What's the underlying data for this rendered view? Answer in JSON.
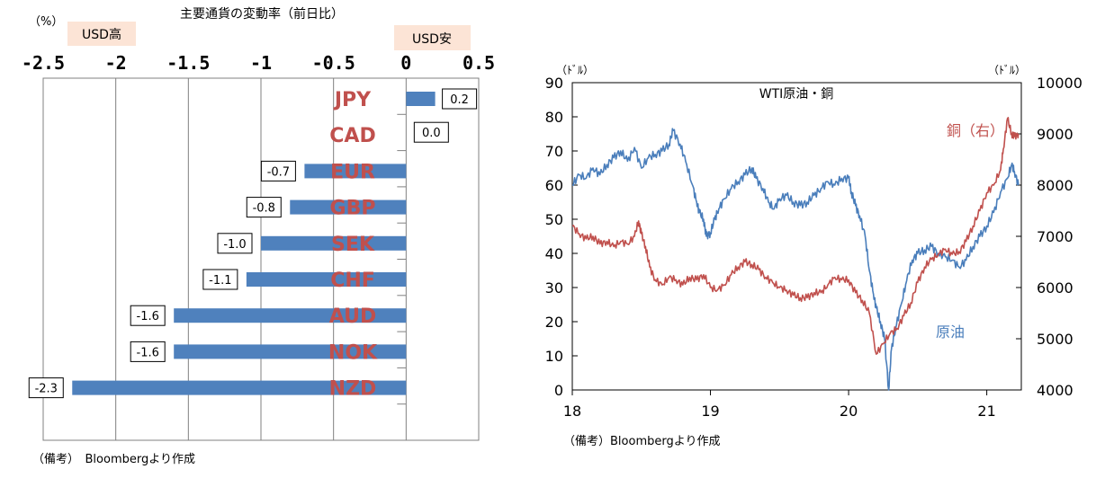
{
  "left_chart": {
    "pct_unit": "（%）",
    "tag_usd_strong": "USD高",
    "tag_usd_weak": "USD安",
    "tag_bg": "#fce4d6",
    "note": "（備考）　Bloombergより作成"
  },
  "right_chart": {
    "left_unit": "（ﾄﾞﾙ）",
    "right_unit": "（ﾄﾞﾙ）",
    "note": "（備考）Bloombergより作成",
    "label_copper": "銅（右）",
    "label_oil": "原油"
  },
  "chart_data": [
    {
      "type": "bar",
      "orientation": "horizontal",
      "title": "主要通貨の変動率（前日比）",
      "categories": [
        "JPY",
        "CAD",
        "EUR",
        "GBP",
        "SEK",
        "CHF",
        "AUD",
        "NOK",
        "NZD"
      ],
      "values": [
        0.2,
        0.0,
        -0.7,
        -0.8,
        -1.0,
        -1.1,
        -1.6,
        -1.6,
        -2.3
      ],
      "data_labels": [
        "0.2",
        "0.0",
        "-0.7",
        "-0.8",
        "-1.0",
        "-1.1",
        "-1.6",
        "-1.6",
        "-2.3"
      ],
      "xticks": [
        -2.5,
        -2,
        -1.5,
        -1,
        -0.5,
        0,
        0.5
      ],
      "xtick_labels": [
        "-2.5",
        "-2",
        "-1.5",
        "-1",
        "-0.5",
        "0",
        "0.5"
      ],
      "xlim": [
        -2.5,
        0.5
      ],
      "grid": true,
      "bar_color": "#4f81bd",
      "category_label_color": "#c0504d"
    },
    {
      "type": "line",
      "title": "WTI原油・銅",
      "xticks": [
        18,
        19,
        20,
        21
      ],
      "xtick_labels": [
        "18",
        "19",
        "20",
        "21"
      ],
      "xlim": [
        18,
        21.25
      ],
      "y_left": {
        "ticks": [
          "0",
          "10",
          "20",
          "30",
          "40",
          "50",
          "60",
          "70",
          "80",
          "90"
        ],
        "ylim": [
          0,
          90
        ]
      },
      "y_right": {
        "ticks": [
          "4000",
          "5000",
          "6000",
          "7000",
          "8000",
          "9000",
          "10000"
        ],
        "ylim": [
          4000,
          10000
        ]
      },
      "series": [
        {
          "name": "原油",
          "axis": "left",
          "color": "#4a7ebb",
          "points": [
            [
              18.0,
              60
            ],
            [
              18.05,
              63
            ],
            [
              18.1,
              62
            ],
            [
              18.15,
              65
            ],
            [
              18.2,
              63
            ],
            [
              18.25,
              66
            ],
            [
              18.3,
              68
            ],
            [
              18.35,
              70
            ],
            [
              18.4,
              67
            ],
            [
              18.45,
              71
            ],
            [
              18.5,
              65
            ],
            [
              18.55,
              68
            ],
            [
              18.6,
              69
            ],
            [
              18.65,
              70
            ],
            [
              18.7,
              72
            ],
            [
              18.73,
              76
            ],
            [
              18.78,
              72
            ],
            [
              18.82,
              67
            ],
            [
              18.87,
              60
            ],
            [
              18.9,
              55
            ],
            [
              18.92,
              52
            ],
            [
              18.95,
              50
            ],
            [
              18.97,
              45
            ],
            [
              19.0,
              46
            ],
            [
              19.03,
              50
            ],
            [
              19.06,
              53
            ],
            [
              19.1,
              56
            ],
            [
              19.15,
              59
            ],
            [
              19.2,
              61
            ],
            [
              19.25,
              63
            ],
            [
              19.3,
              65
            ],
            [
              19.33,
              62
            ],
            [
              19.38,
              59
            ],
            [
              19.42,
              55
            ],
            [
              19.46,
              53
            ],
            [
              19.5,
              56
            ],
            [
              19.55,
              57
            ],
            [
              19.6,
              55
            ],
            [
              19.65,
              54
            ],
            [
              19.7,
              55
            ],
            [
              19.75,
              57
            ],
            [
              19.8,
              59
            ],
            [
              19.85,
              61
            ],
            [
              19.9,
              60
            ],
            [
              19.95,
              62
            ],
            [
              20.0,
              62
            ],
            [
              20.02,
              58
            ],
            [
              20.05,
              54
            ],
            [
              20.08,
              51
            ],
            [
              20.12,
              45
            ],
            [
              20.15,
              35
            ],
            [
              20.18,
              28
            ],
            [
              20.2,
              24
            ],
            [
              20.23,
              20
            ],
            [
              20.26,
              15
            ],
            [
              20.29,
              0
            ],
            [
              20.31,
              12
            ],
            [
              20.34,
              18
            ],
            [
              20.38,
              25
            ],
            [
              20.42,
              32
            ],
            [
              20.46,
              38
            ],
            [
              20.5,
              40
            ],
            [
              20.55,
              41
            ],
            [
              20.6,
              42
            ],
            [
              20.65,
              40
            ],
            [
              20.7,
              39
            ],
            [
              20.75,
              38
            ],
            [
              20.8,
              36
            ],
            [
              20.85,
              38
            ],
            [
              20.9,
              42
            ],
            [
              20.95,
              45
            ],
            [
              21.0,
              48
            ],
            [
              21.05,
              52
            ],
            [
              21.1,
              58
            ],
            [
              21.15,
              62
            ],
            [
              21.18,
              66
            ],
            [
              21.2,
              64
            ],
            [
              21.23,
              60
            ]
          ]
        },
        {
          "name": "銅（右）",
          "axis": "right",
          "color": "#c0504d",
          "points": [
            [
              18.0,
              7200
            ],
            [
              18.05,
              7050
            ],
            [
              18.1,
              6950
            ],
            [
              18.15,
              7000
            ],
            [
              18.2,
              6850
            ],
            [
              18.25,
              6900
            ],
            [
              18.3,
              6800
            ],
            [
              18.35,
              6900
            ],
            [
              18.4,
              6850
            ],
            [
              18.45,
              7000
            ],
            [
              18.48,
              7300
            ],
            [
              18.5,
              7050
            ],
            [
              18.53,
              6800
            ],
            [
              18.56,
              6400
            ],
            [
              18.6,
              6150
            ],
            [
              18.65,
              6050
            ],
            [
              18.7,
              6200
            ],
            [
              18.75,
              6150
            ],
            [
              18.8,
              6050
            ],
            [
              18.85,
              6200
            ],
            [
              18.9,
              6150
            ],
            [
              18.95,
              6250
            ],
            [
              19.0,
              6000
            ],
            [
              19.05,
              5950
            ],
            [
              19.1,
              6050
            ],
            [
              19.15,
              6250
            ],
            [
              19.2,
              6400
            ],
            [
              19.25,
              6500
            ],
            [
              19.3,
              6450
            ],
            [
              19.35,
              6350
            ],
            [
              19.4,
              6200
            ],
            [
              19.45,
              6100
            ],
            [
              19.5,
              6000
            ],
            [
              19.55,
              5950
            ],
            [
              19.6,
              5850
            ],
            [
              19.65,
              5800
            ],
            [
              19.7,
              5800
            ],
            [
              19.75,
              5900
            ],
            [
              19.8,
              5900
            ],
            [
              19.85,
              6050
            ],
            [
              19.9,
              6200
            ],
            [
              19.95,
              6150
            ],
            [
              20.0,
              6150
            ],
            [
              20.05,
              5900
            ],
            [
              20.1,
              5750
            ],
            [
              20.15,
              5500
            ],
            [
              20.2,
              4700
            ],
            [
              20.25,
              4900
            ],
            [
              20.3,
              5100
            ],
            [
              20.35,
              5200
            ],
            [
              20.4,
              5450
            ],
            [
              20.45,
              5700
            ],
            [
              20.5,
              6100
            ],
            [
              20.55,
              6400
            ],
            [
              20.6,
              6550
            ],
            [
              20.65,
              6650
            ],
            [
              20.7,
              6750
            ],
            [
              20.75,
              6650
            ],
            [
              20.8,
              6700
            ],
            [
              20.85,
              6900
            ],
            [
              20.9,
              7200
            ],
            [
              20.95,
              7500
            ],
            [
              21.0,
              7850
            ],
            [
              21.05,
              8000
            ],
            [
              21.1,
              8300
            ],
            [
              21.12,
              8700
            ],
            [
              21.15,
              9300
            ],
            [
              21.18,
              9000
            ],
            [
              21.2,
              8950
            ],
            [
              21.23,
              9000
            ]
          ]
        }
      ]
    }
  ]
}
